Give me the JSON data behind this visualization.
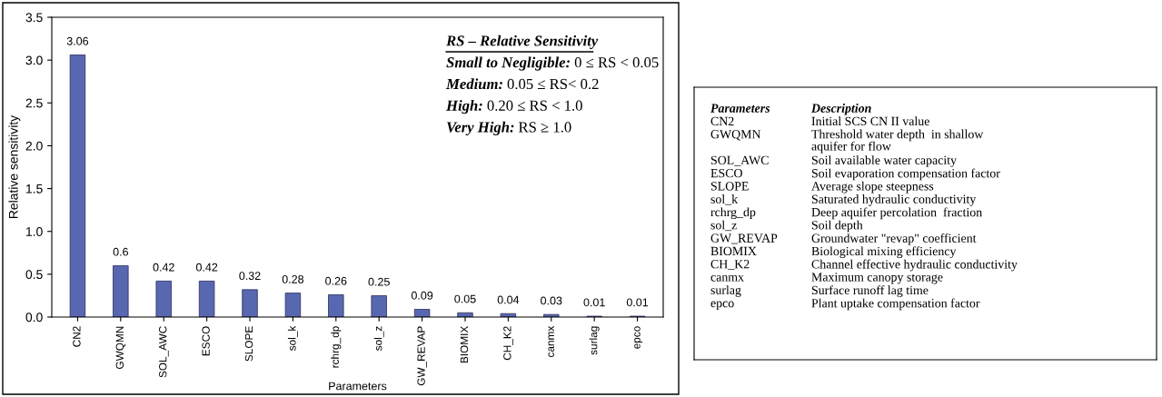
{
  "chart_data": [
    {
      "type": "bar",
      "xlabel": "Parameters",
      "ylabel": "Relative sensitivity",
      "categories": [
        "CN2",
        "GWQMN",
        "SOL_AWC",
        "ESCO",
        "SLOPE",
        "sol_k",
        "rchrg_dp",
        "sol_z",
        "GW_REVAP",
        "BIOMIX",
        "CH_K2",
        "canmx",
        "surlag",
        "epco"
      ],
      "values": [
        3.06,
        0.6,
        0.42,
        0.42,
        0.32,
        0.28,
        0.26,
        0.25,
        0.09,
        0.05,
        0.04,
        0.03,
        0.01,
        0.01
      ],
      "color": "#5868b0",
      "data_labels": true,
      "grid": false,
      "ylim": [
        0,
        3.5
      ],
      "yticks": [
        {
          "value": 0,
          "label": "0.0"
        },
        {
          "value": 0.5,
          "label": "0.5"
        },
        {
          "value": 1,
          "label": "1.0"
        },
        {
          "value": 1.5,
          "label": "1.5"
        },
        {
          "value": 2,
          "label": "2.0"
        },
        {
          "value": 2.5,
          "label": "2.5"
        },
        {
          "value": 3,
          "label": "3.0"
        },
        {
          "value": 3.5,
          "label": "3.5"
        }
      ],
      "annotations": [
        "RS – Relative Sensitivity",
        "Small to Negligible: 0 ≤ RS < 0.05",
        "Medium: 0.05 ≤ RS< 0.2",
        "High: 0.20 ≤ RS < 1.0",
        "Very High: RS ≥ 1.0"
      ]
    },
    {
      "type": "other",
      "annotations": [
        "Parameters",
        "Description",
        "CN2",
        "Initial SCS CN II value",
        "GWQMN",
        "Threshold water depth  in shallow\naquifer for flow",
        "SOL_AWC",
        "Soil available water capacity",
        "ESCO",
        "Soil evaporation compensation factor",
        "SLOPE",
        "Average slope steepness",
        "sol_k",
        "Saturated hydraulic conductivity",
        "rchrg_dp",
        "Deep aquifer percolation  fraction",
        "sol_z",
        "Soil depth",
        "GW_REVAP",
        "Groundwater \"revap\" coefficient",
        "BIOMIX",
        "Biological mixing efficiency",
        "CH_K2",
        "Channel effective hydraulic conductivity",
        "canmx",
        "Maximum canopy storage",
        "surlag",
        "Surface runoff lag time",
        "epco",
        "Plant uptake compensation factor"
      ]
    }
  ]
}
